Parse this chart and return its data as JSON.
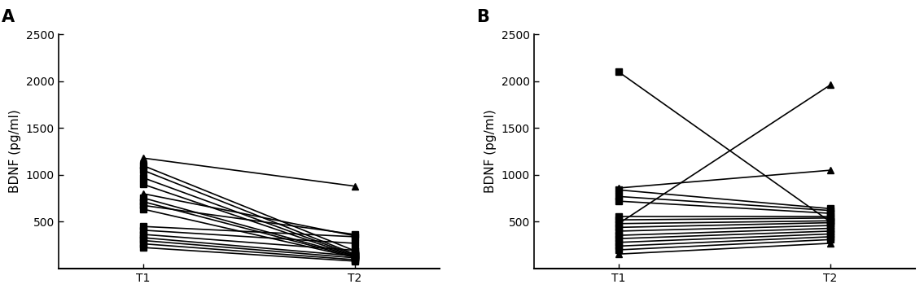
{
  "panel_A": {
    "label": "A",
    "ylabel": "BDNF (pg/ml)",
    "xticks": [
      "T1",
      "T2"
    ],
    "ylim": [
      0,
      2500
    ],
    "yticks": [
      500,
      1000,
      1500,
      2000,
      2500
    ],
    "series": [
      {
        "t1": 1180,
        "t2": 880,
        "marker": "^"
      },
      {
        "t1": 1100,
        "t2": 190,
        "marker": "s"
      },
      {
        "t1": 1050,
        "t2": 155,
        "marker": "s"
      },
      {
        "t1": 970,
        "t2": 145,
        "marker": "s"
      },
      {
        "t1": 900,
        "t2": 135,
        "marker": "s"
      },
      {
        "t1": 800,
        "t2": 350,
        "marker": "^"
      },
      {
        "t1": 755,
        "t2": 135,
        "marker": "s"
      },
      {
        "t1": 715,
        "t2": 125,
        "marker": "s"
      },
      {
        "t1": 675,
        "t2": 365,
        "marker": "s"
      },
      {
        "t1": 635,
        "t2": 120,
        "marker": "s"
      },
      {
        "t1": 450,
        "t2": 340,
        "marker": "s"
      },
      {
        "t1": 410,
        "t2": 270,
        "marker": "s"
      },
      {
        "t1": 365,
        "t2": 195,
        "marker": "s"
      },
      {
        "t1": 330,
        "t2": 135,
        "marker": "s"
      },
      {
        "t1": 300,
        "t2": 115,
        "marker": "s"
      },
      {
        "t1": 265,
        "t2": 95,
        "marker": "s"
      },
      {
        "t1": 225,
        "t2": 80,
        "marker": "s"
      }
    ]
  },
  "panel_B": {
    "label": "B",
    "ylabel": "BDNF (pg/ml)",
    "xticks": [
      "T1",
      "T2"
    ],
    "ylim": [
      0,
      2500
    ],
    "yticks": [
      500,
      1000,
      1500,
      2000,
      2500
    ],
    "series": [
      {
        "t1": 2100,
        "t2": 500,
        "marker": "s"
      },
      {
        "t1": 480,
        "t2": 1960,
        "marker": "^"
      },
      {
        "t1": 860,
        "t2": 1050,
        "marker": "^"
      },
      {
        "t1": 840,
        "t2": 640,
        "marker": "s"
      },
      {
        "t1": 770,
        "t2": 620,
        "marker": "s"
      },
      {
        "t1": 720,
        "t2": 590,
        "marker": "s"
      },
      {
        "t1": 560,
        "t2": 560,
        "marker": "s"
      },
      {
        "t1": 520,
        "t2": 540,
        "marker": "s"
      },
      {
        "t1": 480,
        "t2": 510,
        "marker": "s"
      },
      {
        "t1": 440,
        "t2": 490,
        "marker": "s"
      },
      {
        "t1": 400,
        "t2": 460,
        "marker": "s"
      },
      {
        "t1": 355,
        "t2": 430,
        "marker": "s"
      },
      {
        "t1": 320,
        "t2": 400,
        "marker": "s"
      },
      {
        "t1": 280,
        "t2": 370,
        "marker": "s"
      },
      {
        "t1": 240,
        "t2": 340,
        "marker": "s"
      },
      {
        "t1": 200,
        "t2": 310,
        "marker": "s"
      },
      {
        "t1": 155,
        "t2": 270,
        "marker": "^"
      }
    ]
  },
  "line_color": "#000000",
  "line_width": 1.2,
  "marker_size": 6,
  "background_color": "#ffffff",
  "ylabel_fontsize": 11,
  "tick_fontsize": 10,
  "panel_label_fontsize": 15
}
